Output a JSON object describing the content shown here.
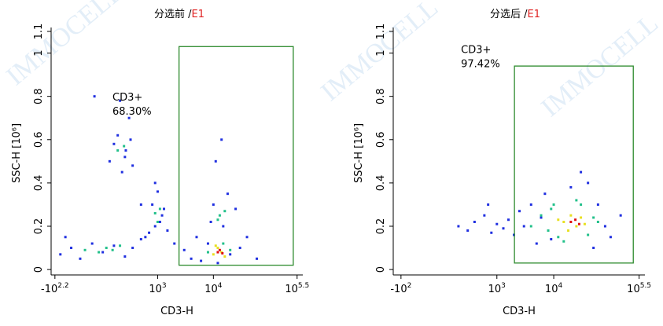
{
  "watermark": "IMMOCELL",
  "chart_data": [
    {
      "type": "scatter",
      "title": "分选前 /",
      "sample": "E1",
      "xlabel": "CD3-H",
      "ylabel": "SSC-H [10⁶]",
      "xscale": "asinh",
      "xlim": [
        -190,
        400000
      ],
      "ylim": [
        -0.025,
        1.1
      ],
      "xticks": [
        {
          "value": -158.49,
          "label": "-10",
          "exp": "2.2"
        },
        {
          "value": 1000,
          "label": "10",
          "exp": "3"
        },
        {
          "value": 10000,
          "label": "10",
          "exp": "4"
        },
        {
          "value": 316227.77,
          "label": "10",
          "exp": "5.5"
        }
      ],
      "yticks": [
        0,
        0.2,
        0.4,
        0.6,
        0.8,
        1,
        1.1
      ],
      "gate": {
        "name": "CD3+",
        "percent": 68.3,
        "percent_label": "68.30%",
        "x": [
          2420,
          270000
        ],
        "y": [
          0.02,
          1.03
        ],
        "color": "#2e8b2e"
      },
      "series": [
        {
          "color": "#1f2fe0",
          "x": [
            -120,
            -60,
            -20,
            30,
            80,
            150,
            250,
            350,
            500,
            700,
            900,
            1200,
            -90,
            40,
            120,
            180,
            220,
            260,
            300,
            350,
            150,
            200,
            250,
            320,
            800,
            1000,
            1100,
            1300,
            900,
            1500,
            4000,
            6000,
            8000,
            12000,
            20000,
            30000,
            15000,
            10000,
            9000,
            25000,
            18000,
            11000,
            14000,
            40000,
            3000,
            5000,
            60000,
            2000,
            500,
            600
          ],
          "y": [
            0.07,
            0.1,
            0.05,
            0.12,
            0.08,
            0.11,
            0.06,
            0.1,
            0.14,
            0.17,
            0.2,
            0.25,
            0.15,
            0.8,
            0.5,
            0.62,
            0.45,
            0.55,
            0.7,
            0.48,
            0.58,
            0.78,
            0.52,
            0.6,
            0.3,
            0.36,
            0.22,
            0.28,
            0.4,
            0.18,
            0.05,
            0.04,
            0.12,
            0.03,
            0.07,
            0.1,
            0.2,
            0.3,
            0.22,
            0.28,
            0.35,
            0.5,
            0.6,
            0.15,
            0.09,
            0.15,
            0.05,
            0.12,
            0.3,
            0.15
          ]
        },
        {
          "color": "#22c08a",
          "x": [
            0,
            60,
            100,
            140,
            200,
            180,
            240,
            900,
            1100,
            1000,
            13000,
            16000,
            12000,
            15000,
            8000,
            20000
          ],
          "y": [
            0.09,
            0.08,
            0.1,
            0.09,
            0.11,
            0.55,
            0.57,
            0.26,
            0.28,
            0.22,
            0.25,
            0.27,
            0.23,
            0.12,
            0.08,
            0.09
          ]
        },
        {
          "color": "#e8e020",
          "x": [
            10000,
            12000,
            14000,
            16000,
            11000
          ],
          "y": [
            0.07,
            0.1,
            0.08,
            0.06,
            0.11
          ]
        },
        {
          "color": "#e01010",
          "x": [
            12000,
            13000,
            14500
          ],
          "y": [
            0.08,
            0.09,
            0.075
          ]
        }
      ]
    },
    {
      "type": "scatter",
      "title": "分选后 /",
      "sample": "E1",
      "xlabel": "CD3-H",
      "ylabel": "SSC-H [10⁶]",
      "xscale": "asinh",
      "xlim": [
        -150,
        400000
      ],
      "ylim": [
        -0.025,
        1.1
      ],
      "xticks": [
        {
          "value": -100,
          "label": "-10",
          "exp": "2"
        },
        {
          "value": 1000,
          "label": "10",
          "exp": "3"
        },
        {
          "value": 10000,
          "label": "10",
          "exp": "4"
        },
        {
          "value": 316227.77,
          "label": "10",
          "exp": "5.5"
        }
      ],
      "yticks": [
        0,
        0.2,
        0.4,
        0.6,
        0.8,
        1,
        1.1
      ],
      "gate": {
        "name": "CD3+",
        "percent": 97.42,
        "percent_label": "97.42%",
        "x": [
          2040,
          250000
        ],
        "y": [
          0.03,
          0.94
        ],
        "color": "#2e8b2e"
      },
      "series": [
        {
          "color": "#1f2fe0",
          "x": [
            200,
            300,
            400,
            600,
            800,
            1000,
            1300,
            1600,
            2000,
            2500,
            3000,
            4000,
            5000,
            60000,
            80000,
            100000,
            40000,
            7000,
            50000,
            30000,
            9000,
            20000,
            150000,
            6000,
            700
          ],
          "y": [
            0.2,
            0.18,
            0.22,
            0.25,
            0.17,
            0.21,
            0.19,
            0.23,
            0.16,
            0.27,
            0.2,
            0.3,
            0.12,
            0.3,
            0.2,
            0.15,
            0.4,
            0.35,
            0.1,
            0.45,
            0.14,
            0.38,
            0.25,
            0.24,
            0.3
          ]
        },
        {
          "color": "#22c08a",
          "x": [
            4000,
            6000,
            8000,
            10000,
            12000,
            30000,
            40000,
            50000,
            60000,
            25000,
            15000,
            9000
          ],
          "y": [
            0.2,
            0.25,
            0.18,
            0.3,
            0.15,
            0.3,
            0.16,
            0.24,
            0.22,
            0.32,
            0.13,
            0.28
          ]
        },
        {
          "color": "#e8e020",
          "x": [
            15000,
            20000,
            25000,
            30000,
            12000,
            18000,
            35000
          ],
          "y": [
            0.22,
            0.25,
            0.2,
            0.24,
            0.23,
            0.18,
            0.21
          ]
        },
        {
          "color": "#e01010",
          "x": [
            20000,
            24000,
            28000
          ],
          "y": [
            0.22,
            0.23,
            0.21
          ]
        }
      ]
    }
  ]
}
